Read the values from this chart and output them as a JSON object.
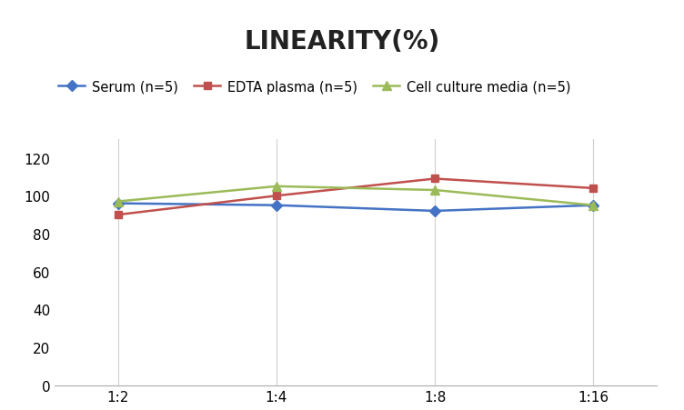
{
  "title": "LINEARITY(%)",
  "x_labels": [
    "1:2",
    "1:4",
    "1:8",
    "1:16"
  ],
  "x_positions": [
    0,
    1,
    2,
    3
  ],
  "series": [
    {
      "label": "Serum (n=5)",
      "values": [
        96,
        95,
        92,
        95
      ],
      "color": "#4472C4",
      "marker": "D",
      "marker_size": 6,
      "linewidth": 1.8
    },
    {
      "label": "EDTA plasma (n=5)",
      "values": [
        90,
        100,
        109,
        104
      ],
      "color": "#C0504D",
      "marker": "s",
      "marker_size": 6,
      "linewidth": 1.8
    },
    {
      "label": "Cell culture media (n=5)",
      "values": [
        97,
        105,
        103,
        95
      ],
      "color": "#9BBB59",
      "marker": "^",
      "marker_size": 7,
      "linewidth": 1.8
    }
  ],
  "ylim": [
    0,
    130
  ],
  "yticks": [
    0,
    20,
    40,
    60,
    80,
    100,
    120
  ],
  "grid_color": "#D0D0D0",
  "background_color": "#FFFFFF",
  "title_fontsize": 20,
  "title_fontweight": "bold",
  "legend_fontsize": 10.5,
  "tick_fontsize": 11
}
